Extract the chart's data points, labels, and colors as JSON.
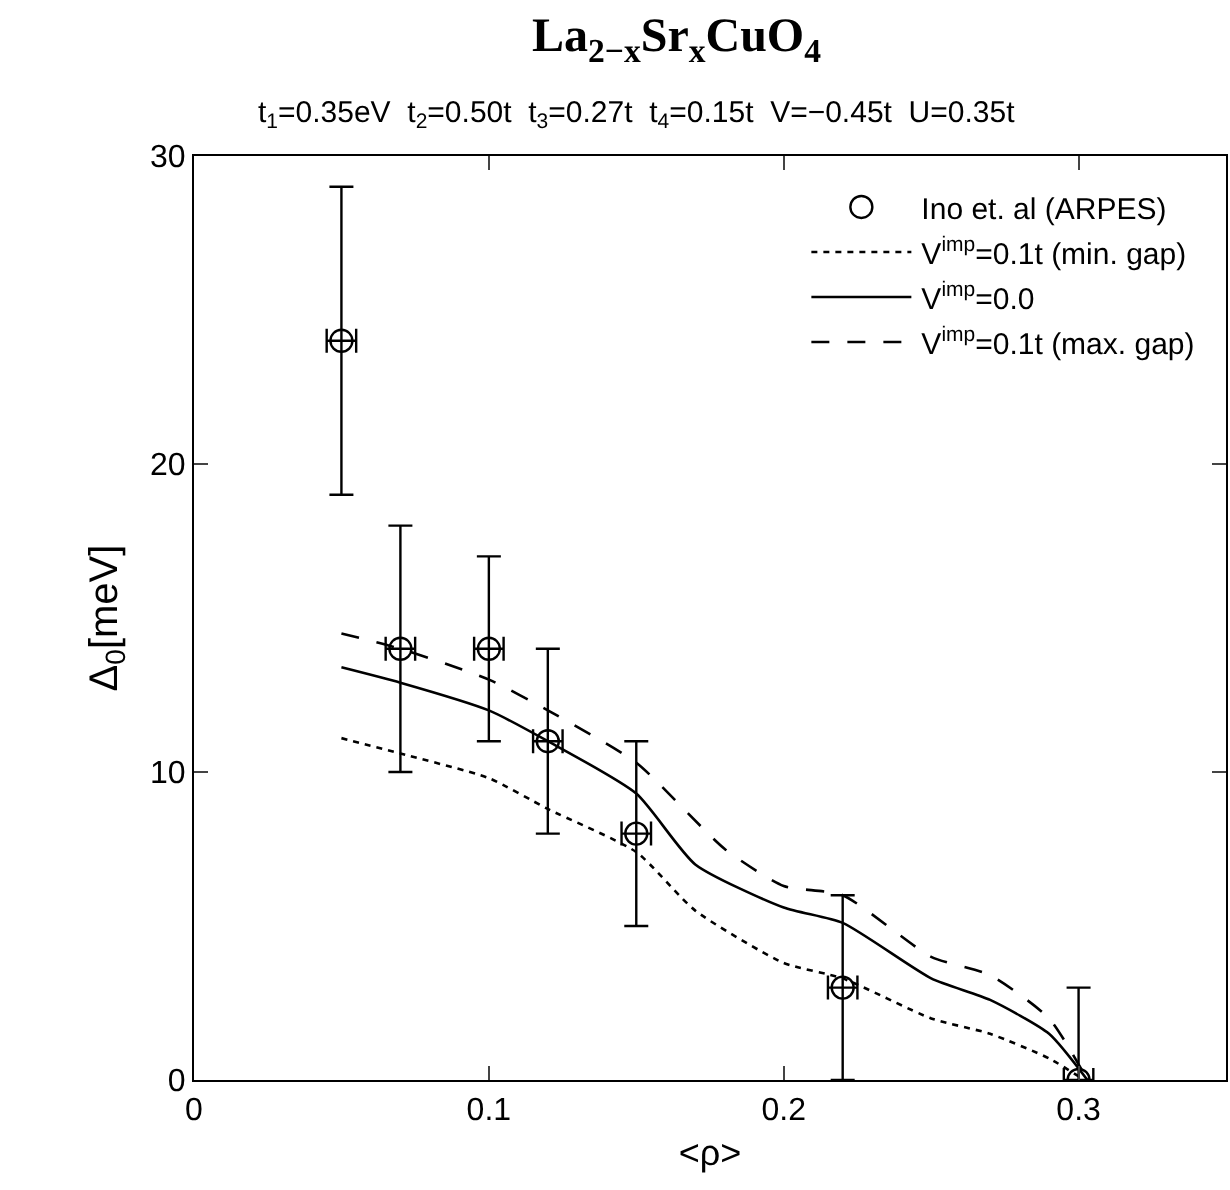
{
  "chart_data": {
    "type": "line",
    "title": "La$_{2−x}$Sr$_{x}$CuO$_{4}$",
    "subtitle": "t$_{1}$=0.35eV  t$_{2}$=0.50t  t$_{3}$=0.27t  t$_{4}$=0.15t  V=−0.45t  U=0.35t",
    "xlabel": "<ρ>",
    "ylabel": "Δ$_{0}$[meV]",
    "xlim": [
      0,
      0.35
    ],
    "xticks": [
      0,
      0.1,
      0.2,
      0.3
    ],
    "ylim": [
      0,
      30
    ],
    "yticks": [
      0,
      10,
      20,
      30
    ],
    "grid": false,
    "legend": "top right",
    "series": [
      {
        "name": "Ino et. al (ARPES)",
        "type": "scatter",
        "marker": "circle",
        "color": "#000000",
        "x": [
          0.05,
          0.07,
          0.1,
          0.12,
          0.15,
          0.22,
          0.3
        ],
        "values": [
          24,
          14,
          14,
          11,
          8,
          3,
          0
        ],
        "errors": [
          5,
          4,
          3,
          3,
          3,
          3,
          3
        ],
        "xerrors": [
          0.005,
          0.005,
          0.005,
          0.005,
          0.005,
          0.005,
          0.005
        ]
      },
      {
        "name": "V$^{imp}$=0.1t (min. gap)",
        "type": "line",
        "line_style": "dotted",
        "color": "#000000",
        "x": [
          0.05,
          0.07,
          0.1,
          0.12,
          0.15,
          0.17,
          0.2,
          0.22,
          0.25,
          0.27,
          0.29,
          0.302
        ],
        "values": [
          11.1,
          10.6,
          9.8,
          8.8,
          7.4,
          5.5,
          3.8,
          3.3,
          2.0,
          1.5,
          0.7,
          0
        ]
      },
      {
        "name": "V$^{imp}$=0.0",
        "type": "line",
        "line_style": "solid",
        "color": "#000000",
        "x": [
          0.05,
          0.07,
          0.1,
          0.12,
          0.15,
          0.17,
          0.2,
          0.22,
          0.25,
          0.27,
          0.29,
          0.303
        ],
        "values": [
          13.4,
          12.9,
          12.0,
          11.0,
          9.3,
          7.0,
          5.6,
          5.1,
          3.3,
          2.6,
          1.5,
          0
        ]
      },
      {
        "name": "V$^{imp}$=0.1t (max. gap)",
        "type": "line",
        "line_style": "dashed",
        "color": "#000000",
        "x": [
          0.05,
          0.07,
          0.1,
          0.12,
          0.15,
          0.18,
          0.2,
          0.22,
          0.25,
          0.27,
          0.29,
          0.303
        ],
        "values": [
          14.5,
          14.0,
          13.0,
          12.0,
          10.3,
          7.5,
          6.3,
          6.0,
          4.0,
          3.4,
          2.0,
          0
        ]
      }
    ]
  }
}
